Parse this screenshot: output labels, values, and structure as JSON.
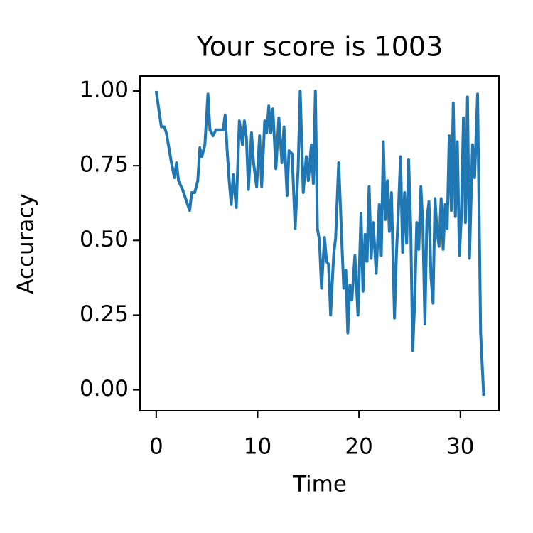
{
  "chart_data": {
    "type": "line",
    "title": "Your score is 1003",
    "xlabel": "Time",
    "ylabel": "Accuracy",
    "color": "#1f77b4",
    "x": [
      0,
      0.5,
      0.8,
      1.0,
      1.3,
      1.5,
      1.8,
      2.0,
      2.2,
      2.6,
      3.0,
      3.3,
      3.5,
      3.8,
      4.1,
      4.3,
      4.5,
      4.8,
      5.1,
      5.3,
      5.6,
      5.9,
      6.3,
      6.6,
      6.8,
      7.0,
      7.2,
      7.4,
      7.6,
      7.9,
      8.2,
      8.5,
      8.7,
      8.9,
      9.1,
      9.4,
      9.6,
      9.9,
      10.2,
      10.4,
      10.7,
      10.9,
      11.1,
      11.3,
      11.5,
      11.8,
      12.1,
      12.4,
      12.6,
      12.9,
      13.1,
      13.4,
      13.7,
      14.0,
      14.2,
      14.5,
      14.8,
      15.0,
      15.3,
      15.5,
      15.7,
      15.9,
      16.1,
      16.3,
      16.6,
      16.8,
      17.0,
      17.2,
      17.5,
      17.7,
      18.0,
      18.3,
      18.5,
      18.7,
      18.9,
      19.1,
      19.3,
      19.6,
      19.9,
      20.2,
      20.4,
      20.6,
      20.8,
      21.0,
      21.2,
      21.4,
      21.7,
      22.0,
      22.2,
      22.4,
      22.6,
      22.8,
      23.0,
      23.2,
      23.5,
      23.7,
      23.9,
      24.1,
      24.3,
      24.5,
      24.7,
      24.9,
      25.1,
      25.3,
      25.5,
      25.7,
      25.9,
      26.1,
      26.3,
      26.5,
      26.7,
      26.9,
      27.1,
      27.3,
      27.5,
      27.7,
      27.9,
      28.1,
      28.3,
      28.5,
      28.7,
      28.9,
      29.1,
      29.3,
      29.5,
      29.7,
      29.9,
      30.1,
      30.3,
      30.5,
      30.7,
      30.9,
      31.2,
      31.4,
      31.7,
      32.0,
      32.3
    ],
    "values": [
      1.0,
      0.88,
      0.88,
      0.86,
      0.8,
      0.76,
      0.71,
      0.76,
      0.7,
      0.67,
      0.63,
      0.6,
      0.66,
      0.66,
      0.7,
      0.81,
      0.78,
      0.82,
      0.99,
      0.87,
      0.85,
      0.87,
      0.87,
      0.87,
      0.92,
      0.8,
      0.7,
      0.62,
      0.72,
      0.61,
      0.9,
      0.82,
      0.9,
      0.84,
      0.67,
      0.86,
      0.76,
      0.68,
      0.85,
      0.68,
      0.9,
      0.86,
      0.95,
      0.86,
      0.94,
      0.74,
      0.91,
      0.76,
      0.88,
      0.65,
      0.8,
      0.79,
      0.54,
      0.74,
      1.0,
      0.66,
      0.78,
      0.7,
      0.82,
      0.69,
      1.0,
      0.54,
      0.5,
      0.34,
      0.51,
      0.43,
      0.42,
      0.25,
      0.45,
      0.51,
      0.76,
      0.5,
      0.34,
      0.4,
      0.19,
      0.35,
      0.3,
      0.45,
      0.25,
      0.59,
      0.33,
      0.52,
      0.43,
      0.68,
      0.44,
      0.56,
      0.39,
      0.62,
      0.45,
      0.83,
      0.57,
      0.7,
      0.53,
      0.66,
      0.24,
      0.46,
      0.61,
      0.78,
      0.46,
      0.66,
      0.49,
      0.77,
      0.55,
      0.13,
      0.3,
      0.56,
      0.47,
      0.68,
      0.55,
      0.22,
      0.57,
      0.63,
      0.38,
      0.29,
      0.64,
      0.53,
      0.48,
      0.64,
      0.47,
      0.62,
      0.54,
      0.85,
      0.6,
      0.96,
      0.58,
      0.83,
      0.45,
      0.58,
      0.91,
      0.56,
      0.98,
      0.44,
      0.82,
      0.71,
      0.99,
      0.19,
      -0.02
    ],
    "xlim": [
      -1.6,
      33.8
    ],
    "ylim": [
      -0.07,
      1.05
    ],
    "xticks": [
      0,
      10,
      20,
      30
    ],
    "yticks": [
      {
        "value": 0,
        "label": "0.00"
      },
      0.25,
      {
        "value": 0.5,
        "label": "0.50"
      },
      0.75,
      {
        "value": 1,
        "label": "1.00"
      }
    ]
  }
}
